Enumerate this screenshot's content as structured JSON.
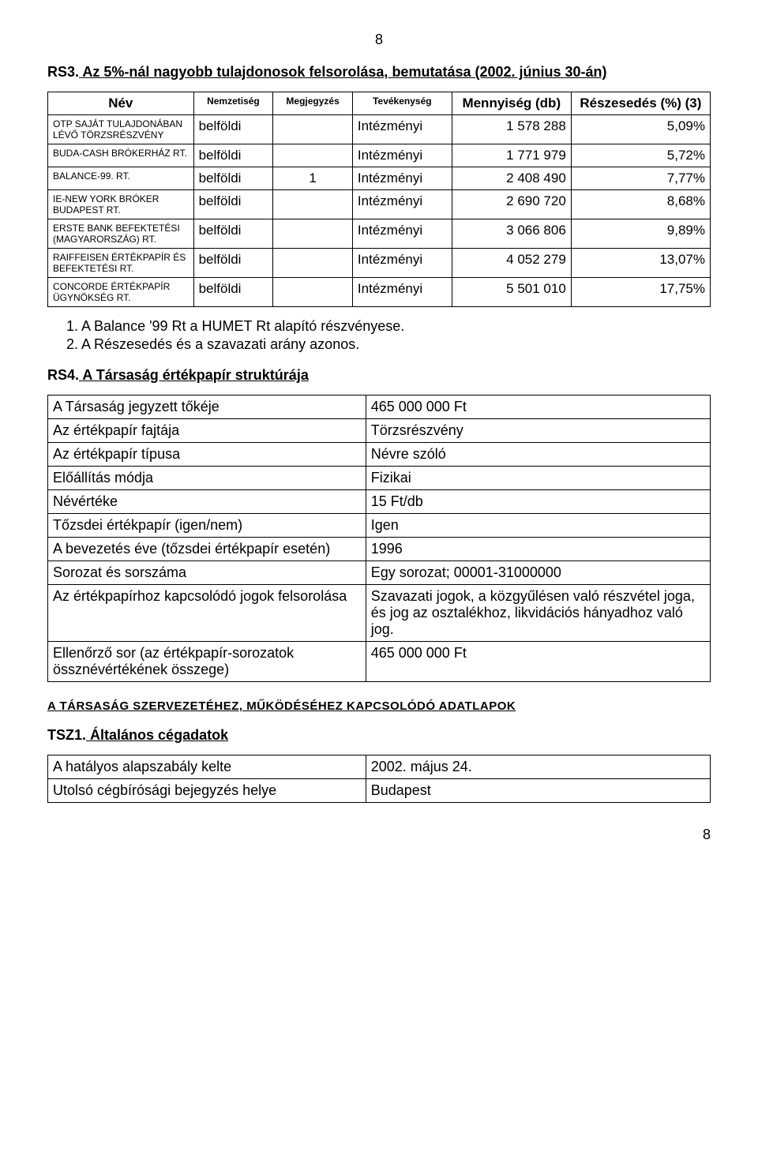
{
  "page_number_top": "8",
  "page_number_bottom": "8",
  "rs3": {
    "heading_prefix": "RS3.",
    "heading_text": "Az 5%-nál nagyobb tulajdonosok felsorolása, bemutatása (2002. június 30-án)",
    "headers": {
      "name": "Név",
      "nationality": "Nemzetiség",
      "note": "Megjegyzés",
      "activity": "Tevékenység",
      "quantity": "Mennyiség (db)",
      "share": "Részesedés (%) (3)"
    },
    "rows": [
      {
        "name": "OTP SAJÁT TULAJDONÁBAN LÉVŐ TÖRZSRÉSZVÉNY",
        "nat": "belföldi",
        "note": "",
        "act": "Intézményi",
        "qty": "1 578 288",
        "share": "5,09%"
      },
      {
        "name": "BUDA-CASH BRÓKERHÁZ RT.",
        "nat": "belföldi",
        "note": "",
        "act": "Intézményi",
        "qty": "1 771 979",
        "share": "5,72%"
      },
      {
        "name": "BALANCE-99. RT.",
        "nat": "belföldi",
        "note": "1",
        "act": "Intézményi",
        "qty": "2 408 490",
        "share": "7,77%"
      },
      {
        "name": "IE-NEW YORK BRÓKER BUDAPEST RT.",
        "nat": "belföldi",
        "note": "",
        "act": "Intézményi",
        "qty": "2 690 720",
        "share": "8,68%"
      },
      {
        "name": "ERSTE BANK BEFEKTETÉSI (MAGYARORSZÁG) RT.",
        "nat": "belföldi",
        "note": "",
        "act": "Intézményi",
        "qty": "3 066 806",
        "share": "9,89%"
      },
      {
        "name": "RAIFFEISEN ÉRTÉKPAPÍR ÉS BEFEKTETÉSI RT.",
        "nat": "belföldi",
        "note": "",
        "act": "Intézményi",
        "qty": "4 052 279",
        "share": "13,07%"
      },
      {
        "name": "CONCORDE ÉRTÉKPAPÍR ÜGYNÖKSÉG RT.",
        "nat": "belföldi",
        "note": "",
        "act": "Intézményi",
        "qty": "5 501 010",
        "share": "17,75%"
      }
    ],
    "notes": [
      "1.  A Balance '99 Rt a HUMET Rt alapító részvényese.",
      "2.  A Részesedés és a szavazati arány azonos."
    ]
  },
  "rs4": {
    "heading_prefix": "RS4.",
    "heading_text": "A Társaság értékpapír struktúrája",
    "rows": [
      {
        "k": "A Társaság jegyzett tőkéje",
        "v": "465 000 000 Ft"
      },
      {
        "k": "Az értékpapír fajtája",
        "v": "Törzsrészvény"
      },
      {
        "k": "Az értékpapír típusa",
        "v": "Névre szóló"
      },
      {
        "k": "Előállítás módja",
        "v": "Fizikai"
      },
      {
        "k": "Névértéke",
        "v": "15 Ft/db"
      },
      {
        "k": "Tőzsdei értékpapír (igen/nem)",
        "v": "Igen"
      },
      {
        "k": "A bevezetés éve (tőzsdei értékpapír esetén)",
        "v": "1996"
      },
      {
        "k": "Sorozat és sorszáma",
        "v": "Egy sorozat; 00001-31000000"
      },
      {
        "k": "Az értékpapírhoz kapcsolódó jogok felsorolása",
        "v": "Szavazati jogok, a közgyűlésen való részvétel joga, és jog az osztalékhoz, likvidációs hányadhoz való jog."
      },
      {
        "k": "Ellenőrző sor (az értékpapír-sorozatok össznévértékének összege)",
        "v": "465 000 000 Ft"
      }
    ]
  },
  "subheading": "A TÁRSASÁG SZERVEZETÉHEZ, MŰKÖDÉSÉHEZ KAPCSOLÓDÓ ADATLAPOK",
  "tsz1": {
    "heading_prefix": "TSZ1.",
    "heading_text": "Általános cégadatok",
    "rows": [
      {
        "k": "A hatályos alapszabály kelte",
        "v": "2002. május 24."
      },
      {
        "k": "Utolsó cégbírósági bejegyzés helye",
        "v": "Budapest"
      }
    ]
  }
}
